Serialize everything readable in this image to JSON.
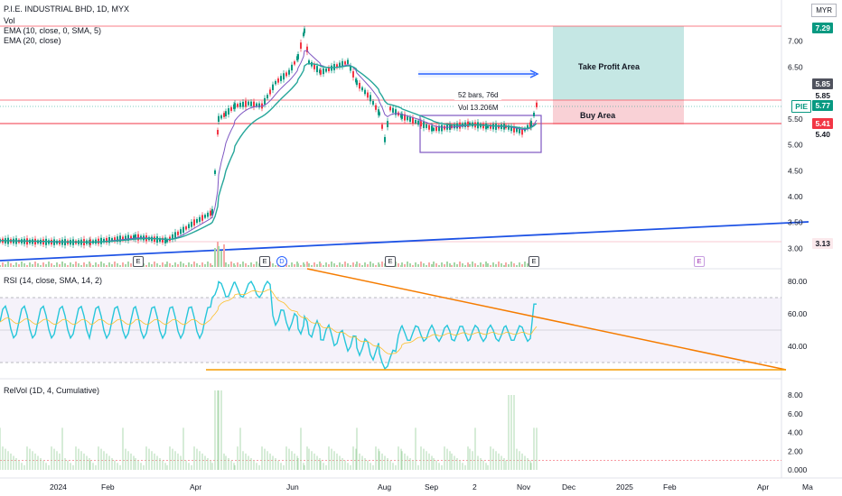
{
  "header": {
    "title_line": "P.I.E. INDUSTRIAL BHD, 1D, MYX",
    "vol_label": "Vol",
    "ema10_label": "EMA (10, close, 0, SMA, 5)",
    "ema20_label": "EMA (20, close)",
    "currency": "MYR"
  },
  "price_axis": {
    "ticks": [
      "7.00",
      "6.50",
      "5.50",
      "5.00",
      "4.50",
      "4.00",
      "3.50",
      "3.00"
    ],
    "badges": {
      "top": "7.29",
      "tp_low": "5.85",
      "tp_low2": "5.85",
      "symbol": "PIE",
      "last": "5.77",
      "buy": "5.41",
      "low": "5.40",
      "bottom": "3.13"
    },
    "colors": {
      "pink": "#f23645",
      "dark": "#50535e",
      "teal": "#089981",
      "bg": "#ffffff"
    }
  },
  "zones": {
    "take_profit_label": "Take Profit Area",
    "buy_label": "Buy Area",
    "measure_bars": "52 bars, 76d",
    "measure_vol": "Vol 13.206M"
  },
  "earnings": [
    "E",
    "E",
    "D",
    "E",
    "E",
    "E"
  ],
  "rsi": {
    "label": "RSI (14, close, SMA, 14, 2)",
    "ticks": [
      "80.00",
      "60.00",
      "40.00"
    ]
  },
  "relvol": {
    "label": "RelVol (1D, 4, Cumulative)",
    "ticks": [
      "8.00",
      "6.00",
      "4.00",
      "2.00",
      "0.000"
    ]
  },
  "time_axis": [
    "2024",
    "Feb",
    "Apr",
    "Jun",
    "Aug",
    "Sep",
    "2",
    "Nov",
    "Dec",
    "2025",
    "Feb",
    "Apr",
    "Ma"
  ]
}
